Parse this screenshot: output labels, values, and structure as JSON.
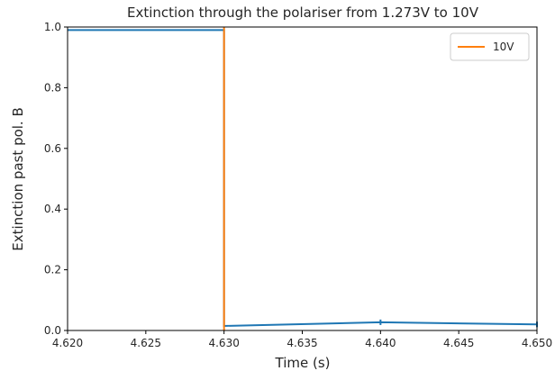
{
  "chart_data": {
    "type": "line",
    "title": "Extinction through the polariser from 1.273V to 10V",
    "xlabel": "Time (s)",
    "ylabel": "Extinction past pol. B",
    "xlim": [
      4.62,
      4.65
    ],
    "ylim": [
      0.0,
      1.0
    ],
    "xticks": [
      4.62,
      4.625,
      4.63,
      4.635,
      4.64,
      4.645,
      4.65
    ],
    "xtick_labels": [
      "4.620",
      "4.625",
      "4.630",
      "4.635",
      "4.640",
      "4.645",
      "4.650"
    ],
    "yticks": [
      0.0,
      0.2,
      0.4,
      0.6,
      0.8,
      1.0
    ],
    "ytick_labels": [
      "0.0",
      "0.2",
      "0.4",
      "0.6",
      "0.8",
      "1.0"
    ],
    "grid": false,
    "legend_position": "top-right",
    "series": [
      {
        "color": "#1f77b4",
        "x": [
          4.62,
          4.63,
          4.63,
          4.64,
          4.65
        ],
        "y": [
          0.99,
          0.99,
          0.015,
          0.027,
          0.02
        ],
        "error_bars": [
          {
            "x": 4.64,
            "y": 0.027,
            "err": 0.009
          },
          {
            "x": 4.65,
            "y": 0.02,
            "err": 0.009
          }
        ]
      },
      {
        "name": "10V",
        "color": "#ff7f0e",
        "x": [
          4.63,
          4.63
        ],
        "y": [
          0.0,
          1.0
        ]
      }
    ]
  }
}
